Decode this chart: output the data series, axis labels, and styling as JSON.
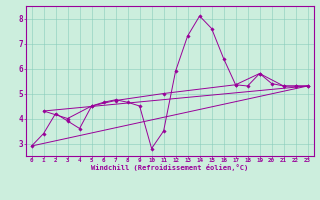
{
  "xlabel": "Windchill (Refroidissement éolien,°C)",
  "background_color": "#cceedd",
  "line_color": "#990099",
  "xlim": [
    -0.5,
    23.5
  ],
  "ylim": [
    2.5,
    8.5
  ],
  "yticks": [
    3,
    4,
    5,
    6,
    7,
    8
  ],
  "xticks": [
    0,
    1,
    2,
    3,
    4,
    5,
    6,
    7,
    8,
    9,
    10,
    11,
    12,
    13,
    14,
    15,
    16,
    17,
    18,
    19,
    20,
    21,
    22,
    23
  ],
  "line1": {
    "x": [
      0,
      1,
      2,
      3,
      4,
      5,
      6,
      7,
      8,
      9,
      10,
      11,
      12,
      13,
      14,
      15,
      16,
      17,
      18,
      19,
      20,
      21,
      22,
      23
    ],
    "y": [
      2.9,
      3.4,
      4.2,
      3.9,
      3.6,
      4.5,
      4.65,
      4.75,
      4.65,
      4.5,
      2.8,
      3.5,
      5.9,
      7.3,
      8.1,
      7.6,
      6.4,
      5.35,
      5.3,
      5.8,
      5.4,
      5.3,
      5.3,
      5.3
    ]
  },
  "line2": {
    "x": [
      0,
      23
    ],
    "y": [
      2.9,
      5.3
    ]
  },
  "line3": {
    "x": [
      1,
      3,
      5,
      7,
      11,
      17,
      19,
      21,
      22,
      23
    ],
    "y": [
      4.3,
      4.0,
      4.5,
      4.72,
      5.0,
      5.35,
      5.8,
      5.3,
      5.3,
      5.3
    ]
  },
  "line4": {
    "x": [
      1,
      23
    ],
    "y": [
      4.3,
      5.3
    ]
  }
}
